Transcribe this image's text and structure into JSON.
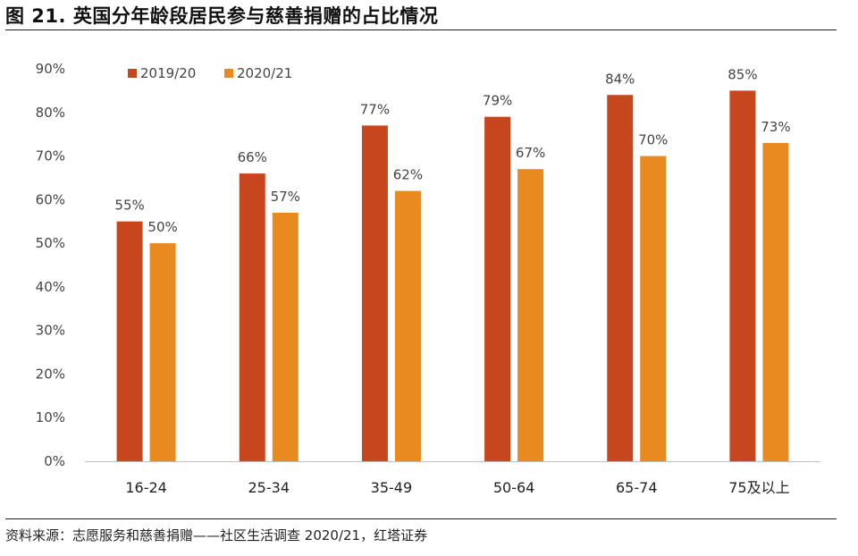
{
  "header": {
    "title": "图 21. 英国分年龄段居民参与慈善捐赠的占比情况"
  },
  "footer": {
    "source": "资料来源：志愿服务和慈善捐赠——社区生活调查 2020/21，红塔证券"
  },
  "colors": {
    "series_2019_20": "#c8461d",
    "series_2020_21": "#e88a1f"
  },
  "chart_data": {
    "type": "bar",
    "title": "图 21. 英国分年龄段居民参与慈善捐赠的占比情况",
    "categories": [
      "16-24",
      "25-34",
      "35-49",
      "50-64",
      "65-74",
      "75及以上"
    ],
    "series": [
      {
        "name": "2019/20",
        "values": [
          55,
          66,
          77,
          79,
          84,
          85
        ],
        "labels": [
          "55%",
          "66%",
          "77%",
          "79%",
          "84%",
          "85%"
        ]
      },
      {
        "name": "2020/21",
        "values": [
          50,
          57,
          62,
          67,
          70,
          73
        ],
        "labels": [
          "50%",
          "57%",
          "62%",
          "67%",
          "70%",
          "73%"
        ]
      }
    ],
    "ylim": [
      0,
      90
    ],
    "yticks": [
      "0%",
      "10%",
      "20%",
      "30%",
      "40%",
      "50%",
      "60%",
      "70%",
      "80%",
      "90%"
    ],
    "xlabel": "",
    "ylabel": "",
    "grid": false,
    "legend": "top-left"
  }
}
